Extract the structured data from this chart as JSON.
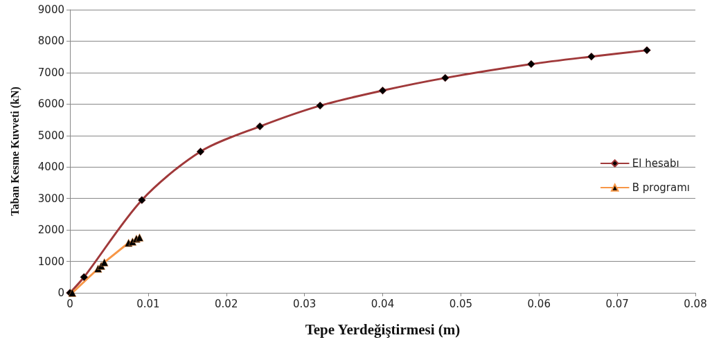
{
  "chart_data": {
    "type": "line",
    "xlabel": "Tepe Yerdeğiştirmesi (m)",
    "ylabel": "Taban Kesme Kuvveti (kN)",
    "xlim": [
      0,
      0.08
    ],
    "xticks": [
      0,
      0.01,
      0.02,
      0.03,
      0.04,
      0.05,
      0.06,
      0.07,
      0.08
    ],
    "ylim": [
      0,
      9000
    ],
    "yticks": [
      0,
      1000,
      2000,
      3000,
      4000,
      5000,
      6000,
      7000,
      8000,
      9000
    ],
    "grid": "y",
    "legend": "right",
    "series": [
      {
        "name": "El hesabı",
        "color": "#a0393a",
        "marker": "diamond",
        "x": [
          0,
          0.0018,
          0.0092,
          0.0167,
          0.0243,
          0.032,
          0.04,
          0.048,
          0.059,
          0.0667,
          0.0738
        ],
        "values": [
          0,
          500,
          2950,
          4490,
          5290,
          5950,
          6430,
          6830,
          7270,
          7510,
          7710
        ]
      },
      {
        "name": "B programı",
        "color": "#f79646",
        "marker": "triangle",
        "x": [
          0.0003,
          0.0036,
          0.004,
          0.0044,
          0.0075,
          0.008,
          0.0085,
          0.0089
        ],
        "values": [
          0,
          770,
          860,
          970,
          1590,
          1630,
          1720,
          1760
        ]
      }
    ]
  }
}
